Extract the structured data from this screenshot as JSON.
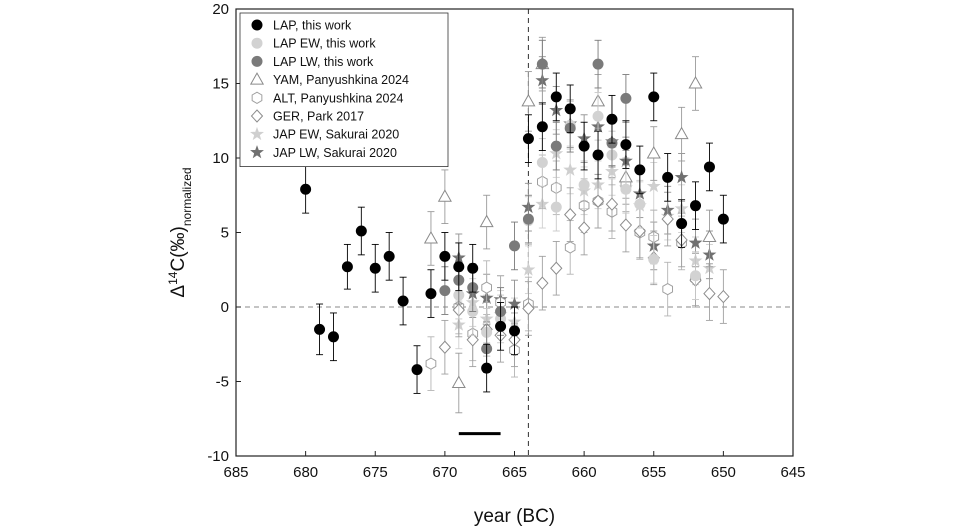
{
  "chart_data": {
    "type": "scatter",
    "title": "",
    "xlabel": "year (BC)",
    "ylabel_prefix": "Δ",
    "ylabel_sup": "14",
    "ylabel_main": "C(‰)",
    "ylabel_sub": "normalized",
    "xlim": [
      685,
      645
    ],
    "ylim": [
      -10,
      20
    ],
    "xticks": [
      "685",
      "680",
      "675",
      "670",
      "665",
      "660",
      "655",
      "650",
      "645"
    ],
    "yticks": [
      "-10",
      "-5",
      "0",
      "5",
      "10",
      "15",
      "20"
    ],
    "legend_position": "top-left",
    "vertical_line_year": 664,
    "horizontal_line_value": 0,
    "bar_marker": {
      "from_year": 669,
      "to_year": 666,
      "value": -8.5
    },
    "series": [
      {
        "name": "LAP, this work",
        "marker": "circle",
        "fill": "#000000",
        "stroke": "#000000",
        "err": "#000000",
        "points": [
          {
            "x": 680,
            "y": 7.9,
            "e": 1.6
          },
          {
            "x": 679,
            "y": -1.5,
            "e": 1.7
          },
          {
            "x": 678,
            "y": -2.0,
            "e": 1.6
          },
          {
            "x": 677,
            "y": 2.7,
            "e": 1.5
          },
          {
            "x": 676,
            "y": 5.1,
            "e": 1.6
          },
          {
            "x": 675,
            "y": 2.6,
            "e": 1.6
          },
          {
            "x": 674,
            "y": 3.4,
            "e": 1.6
          },
          {
            "x": 673,
            "y": 0.4,
            "e": 1.6
          },
          {
            "x": 672,
            "y": -4.2,
            "e": 1.6
          },
          {
            "x": 671,
            "y": 0.9,
            "e": 1.6
          },
          {
            "x": 670,
            "y": 3.4,
            "e": 1.6
          },
          {
            "x": 669,
            "y": 2.7,
            "e": 1.6
          },
          {
            "x": 668,
            "y": 2.6,
            "e": 1.6
          },
          {
            "x": 667,
            "y": -4.1,
            "e": 1.6
          },
          {
            "x": 666,
            "y": -1.3,
            "e": 1.6
          },
          {
            "x": 665,
            "y": -1.6,
            "e": 1.6
          },
          {
            "x": 664,
            "y": 11.3,
            "e": 1.6
          },
          {
            "x": 663,
            "y": 12.1,
            "e": 1.6
          },
          {
            "x": 662,
            "y": 14.1,
            "e": 1.6
          },
          {
            "x": 661,
            "y": 13.3,
            "e": 1.6
          },
          {
            "x": 660,
            "y": 10.8,
            "e": 1.6
          },
          {
            "x": 659,
            "y": 10.2,
            "e": 1.6
          },
          {
            "x": 658,
            "y": 12.6,
            "e": 1.6
          },
          {
            "x": 657,
            "y": 10.9,
            "e": 1.6
          },
          {
            "x": 656,
            "y": 9.2,
            "e": 1.6
          },
          {
            "x": 655,
            "y": 14.1,
            "e": 1.6
          },
          {
            "x": 654,
            "y": 8.7,
            "e": 1.6
          },
          {
            "x": 653,
            "y": 5.6,
            "e": 1.6
          },
          {
            "x": 652,
            "y": 6.8,
            "e": 1.6
          },
          {
            "x": 651,
            "y": 9.4,
            "e": 1.6
          },
          {
            "x": 650,
            "y": 5.9,
            "e": 1.6
          }
        ]
      },
      {
        "name": "LAP EW, this work",
        "marker": "circle",
        "fill": "#d2d2d2",
        "stroke": "#d2d2d2",
        "err": "#c8c8c8",
        "points": [
          {
            "x": 669,
            "y": 0.8,
            "e": 1.6
          },
          {
            "x": 668,
            "y": -0.3,
            "e": 1.6
          },
          {
            "x": 667,
            "y": -1.7,
            "e": 1.6
          },
          {
            "x": 666,
            "y": -0.8,
            "e": 1.6
          },
          {
            "x": 664,
            "y": 5.8,
            "e": 1.6
          },
          {
            "x": 663,
            "y": 9.7,
            "e": 1.6
          },
          {
            "x": 662,
            "y": 6.7,
            "e": 1.6
          },
          {
            "x": 661,
            "y": 12.2,
            "e": 1.6
          },
          {
            "x": 660,
            "y": 8.2,
            "e": 1.6
          },
          {
            "x": 659,
            "y": 12.8,
            "e": 1.6
          },
          {
            "x": 658,
            "y": 10.2,
            "e": 1.6
          },
          {
            "x": 657,
            "y": 7.9,
            "e": 1.6
          },
          {
            "x": 656,
            "y": 6.9,
            "e": 1.6
          },
          {
            "x": 655,
            "y": 3.2,
            "e": 1.6
          },
          {
            "x": 652,
            "y": 2.1,
            "e": 1.6
          }
        ]
      },
      {
        "name": "LAP LW, this work",
        "marker": "circle",
        "fill": "#7a7a7a",
        "stroke": "#7a7a7a",
        "err": "#7a7a7a",
        "points": [
          {
            "x": 670,
            "y": 1.1,
            "e": 1.6
          },
          {
            "x": 669,
            "y": 1.8,
            "e": 1.6
          },
          {
            "x": 668,
            "y": 1.3,
            "e": 1.6
          },
          {
            "x": 667,
            "y": -2.8,
            "e": 1.6
          },
          {
            "x": 666,
            "y": -0.3,
            "e": 1.6
          },
          {
            "x": 665,
            "y": 4.1,
            "e": 1.6
          },
          {
            "x": 664,
            "y": 5.9,
            "e": 1.6
          },
          {
            "x": 663,
            "y": 16.3,
            "e": 1.6
          },
          {
            "x": 662,
            "y": 10.8,
            "e": 1.6
          },
          {
            "x": 661,
            "y": 12.0,
            "e": 1.6
          },
          {
            "x": 659,
            "y": 16.3,
            "e": 1.6
          },
          {
            "x": 658,
            "y": 11.0,
            "e": 1.6
          },
          {
            "x": 657,
            "y": 14.0,
            "e": 1.6
          }
        ]
      },
      {
        "name": "YAM, Panyushkina 2024",
        "marker": "triangle",
        "fill": "#ffffff",
        "stroke": "#8a8a8a",
        "err": "#9a9a9a",
        "points": [
          {
            "x": 671,
            "y": 4.6,
            "e": 1.8
          },
          {
            "x": 670,
            "y": 7.4,
            "e": 1.8
          },
          {
            "x": 669,
            "y": -5.1,
            "e": 2.0
          },
          {
            "x": 667,
            "y": 5.7,
            "e": 1.8
          },
          {
            "x": 664,
            "y": 13.8,
            "e": 2.0
          },
          {
            "x": 663,
            "y": 16.3,
            "e": 1.8
          },
          {
            "x": 659,
            "y": 13.8,
            "e": 1.8
          },
          {
            "x": 657,
            "y": 8.7,
            "e": 1.8
          },
          {
            "x": 655,
            "y": 10.3,
            "e": 1.8
          },
          {
            "x": 653,
            "y": 11.6,
            "e": 1.8
          },
          {
            "x": 652,
            "y": 15.0,
            "e": 1.8
          },
          {
            "x": 651,
            "y": 4.7,
            "e": 1.8
          }
        ]
      },
      {
        "name": "ALT, Panyushkina 2024",
        "marker": "hexagon",
        "fill": "#ffffff",
        "stroke": "#a0a0a0",
        "err": "#b4b4b4",
        "points": [
          {
            "x": 671,
            "y": -3.8,
            "e": 1.8
          },
          {
            "x": 669,
            "y": 0.0,
            "e": 1.8
          },
          {
            "x": 668,
            "y": -1.8,
            "e": 1.8
          },
          {
            "x": 667,
            "y": 1.3,
            "e": 1.8
          },
          {
            "x": 666,
            "y": 0.3,
            "e": 1.8
          },
          {
            "x": 665,
            "y": -2.9,
            "e": 1.8
          },
          {
            "x": 664,
            "y": 0.2,
            "e": 1.8
          },
          {
            "x": 663,
            "y": 8.4,
            "e": 1.8
          },
          {
            "x": 662,
            "y": 8.0,
            "e": 1.8
          },
          {
            "x": 661,
            "y": 4.0,
            "e": 1.8
          },
          {
            "x": 660,
            "y": 6.8,
            "e": 1.8
          },
          {
            "x": 659,
            "y": 7.1,
            "e": 1.8
          },
          {
            "x": 658,
            "y": 6.4,
            "e": 1.8
          },
          {
            "x": 657,
            "y": 8.2,
            "e": 1.8
          },
          {
            "x": 656,
            "y": 5.0,
            "e": 1.8
          },
          {
            "x": 655,
            "y": 4.7,
            "e": 1.8
          },
          {
            "x": 654,
            "y": 1.2,
            "e": 1.8
          },
          {
            "x": 653,
            "y": 4.3,
            "e": 1.8
          },
          {
            "x": 652,
            "y": 1.9,
            "e": 1.8
          }
        ]
      },
      {
        "name": "GER, Park 2017",
        "marker": "diamond",
        "fill": "#ffffff",
        "stroke": "#8c8c8c",
        "err": "#a0a0a0",
        "points": [
          {
            "x": 670,
            "y": -2.7,
            "e": 1.8
          },
          {
            "x": 669,
            "y": -0.2,
            "e": 1.8
          },
          {
            "x": 668,
            "y": -2.2,
            "e": 1.8
          },
          {
            "x": 667,
            "y": -1.5,
            "e": 1.8
          },
          {
            "x": 666,
            "y": -1.9,
            "e": 1.8
          },
          {
            "x": 665,
            "y": -2.2,
            "e": 1.8
          },
          {
            "x": 664,
            "y": -0.1,
            "e": 1.8
          },
          {
            "x": 663,
            "y": 1.6,
            "e": 1.8
          },
          {
            "x": 662,
            "y": 2.6,
            "e": 1.8
          },
          {
            "x": 661,
            "y": 6.2,
            "e": 1.8
          },
          {
            "x": 660,
            "y": 5.3,
            "e": 1.8
          },
          {
            "x": 659,
            "y": 7.1,
            "e": 1.8
          },
          {
            "x": 658,
            "y": 6.9,
            "e": 1.8
          },
          {
            "x": 657,
            "y": 5.5,
            "e": 1.8
          },
          {
            "x": 656,
            "y": 5.1,
            "e": 1.8
          },
          {
            "x": 655,
            "y": 3.3,
            "e": 1.8
          },
          {
            "x": 654,
            "y": 5.9,
            "e": 1.8
          },
          {
            "x": 653,
            "y": 4.5,
            "e": 1.8
          },
          {
            "x": 652,
            "y": 1.8,
            "e": 1.8
          },
          {
            "x": 651,
            "y": 0.9,
            "e": 1.8
          },
          {
            "x": 650,
            "y": 0.7,
            "e": 1.8
          }
        ]
      },
      {
        "name": "JAP EW, Sakurai 2020",
        "marker": "star",
        "fill": "#cfcfcf",
        "stroke": "#cfcfcf",
        "err": "#cfcfcf",
        "points": [
          {
            "x": 669,
            "y": -1.2,
            "e": 1.6
          },
          {
            "x": 668,
            "y": 0.3,
            "e": 1.6
          },
          {
            "x": 667,
            "y": -0.8,
            "e": 1.6
          },
          {
            "x": 666,
            "y": -0.5,
            "e": 1.6
          },
          {
            "x": 665,
            "y": -1.0,
            "e": 1.6
          },
          {
            "x": 664,
            "y": 2.5,
            "e": 1.6
          },
          {
            "x": 663,
            "y": 6.9,
            "e": 1.6
          },
          {
            "x": 662,
            "y": 10.3,
            "e": 1.6
          },
          {
            "x": 661,
            "y": 9.2,
            "e": 1.6
          },
          {
            "x": 660,
            "y": 7.8,
            "e": 1.6
          },
          {
            "x": 659,
            "y": 8.2,
            "e": 1.6
          },
          {
            "x": 658,
            "y": 9.1,
            "e": 1.6
          },
          {
            "x": 657,
            "y": 8.0,
            "e": 1.6
          },
          {
            "x": 656,
            "y": 6.8,
            "e": 1.6
          },
          {
            "x": 655,
            "y": 8.1,
            "e": 1.6
          },
          {
            "x": 654,
            "y": 6.1,
            "e": 1.6
          },
          {
            "x": 653,
            "y": 6.6,
            "e": 1.6
          },
          {
            "x": 652,
            "y": 3.1,
            "e": 1.6
          },
          {
            "x": 651,
            "y": 2.6,
            "e": 1.6
          }
        ]
      },
      {
        "name": "JAP LW, Sakurai 2020",
        "marker": "star",
        "fill": "#707070",
        "stroke": "#707070",
        "err": "#909090",
        "points": [
          {
            "x": 669,
            "y": 3.3,
            "e": 1.6
          },
          {
            "x": 668,
            "y": 0.9,
            "e": 1.6
          },
          {
            "x": 667,
            "y": 0.6,
            "e": 1.6
          },
          {
            "x": 666,
            "y": 0.5,
            "e": 1.6
          },
          {
            "x": 665,
            "y": 0.2,
            "e": 1.6
          },
          {
            "x": 664,
            "y": 6.7,
            "e": 1.6
          },
          {
            "x": 663,
            "y": 15.2,
            "e": 1.6
          },
          {
            "x": 662,
            "y": 13.2,
            "e": 1.6
          },
          {
            "x": 661,
            "y": 12.3,
            "e": 1.6
          },
          {
            "x": 660,
            "y": 11.3,
            "e": 1.6
          },
          {
            "x": 659,
            "y": 12.1,
            "e": 1.6
          },
          {
            "x": 658,
            "y": 11.1,
            "e": 1.6
          },
          {
            "x": 657,
            "y": 9.8,
            "e": 1.6
          },
          {
            "x": 656,
            "y": 7.6,
            "e": 1.6
          },
          {
            "x": 655,
            "y": 4.1,
            "e": 1.6
          },
          {
            "x": 654,
            "y": 6.5,
            "e": 1.6
          },
          {
            "x": 653,
            "y": 8.7,
            "e": 1.6
          },
          {
            "x": 652,
            "y": 4.3,
            "e": 1.6
          },
          {
            "x": 651,
            "y": 3.5,
            "e": 1.6
          }
        ]
      }
    ]
  }
}
